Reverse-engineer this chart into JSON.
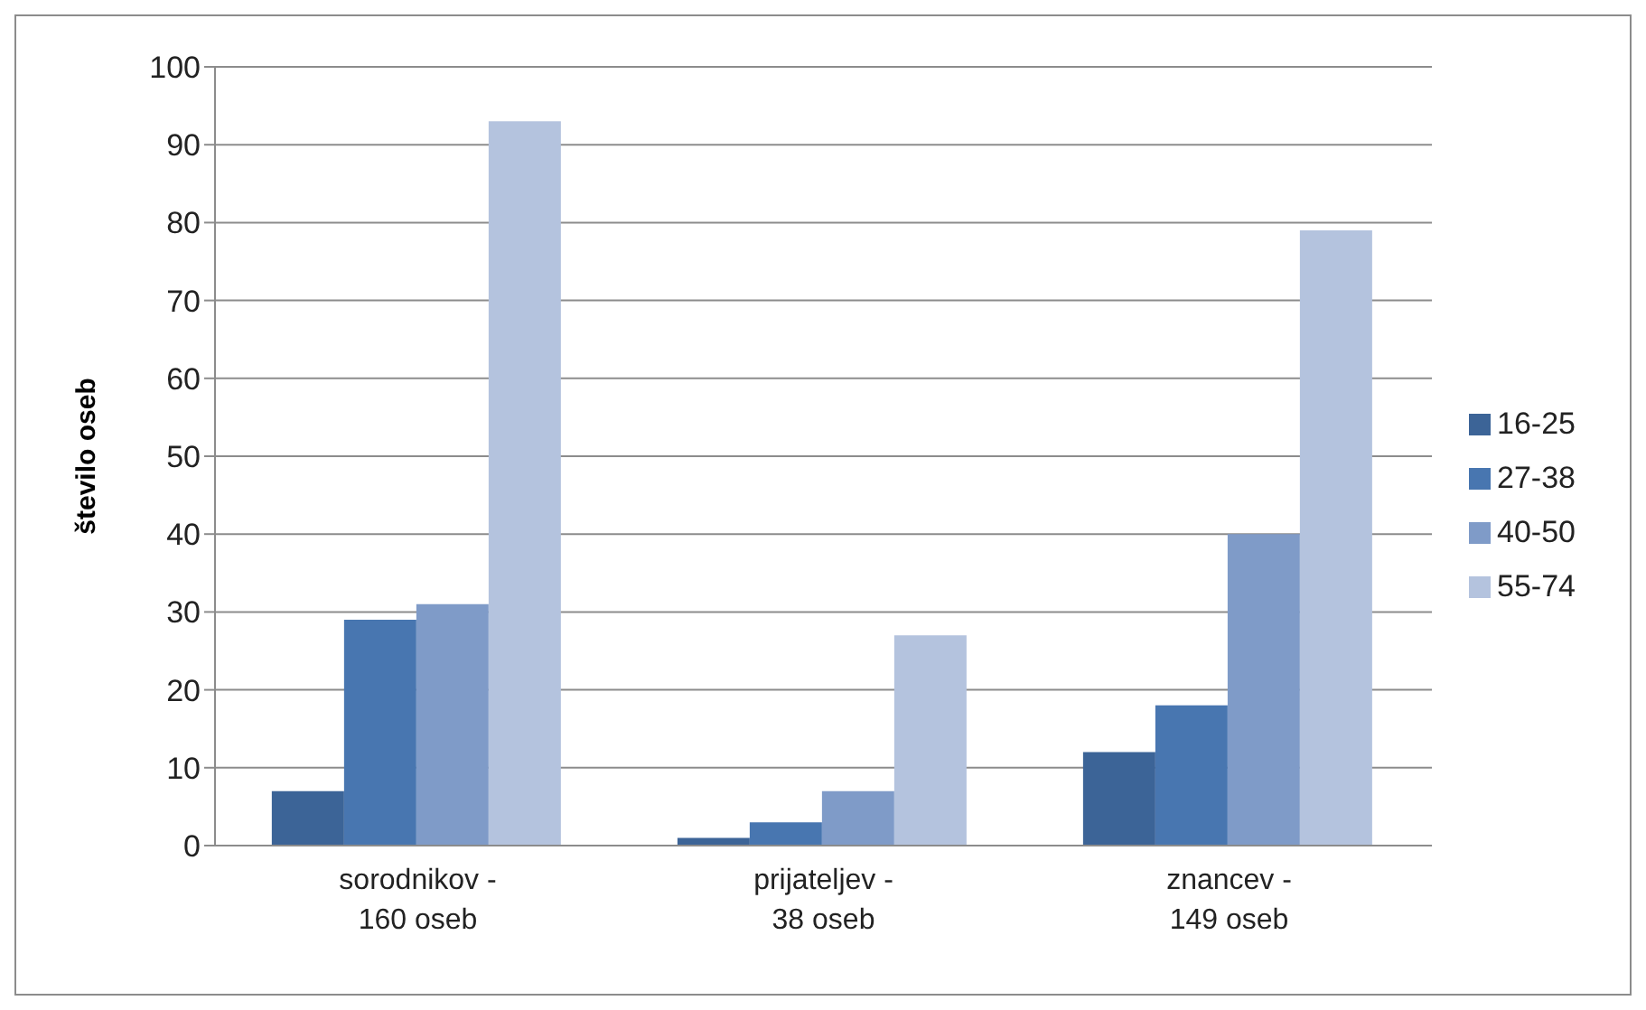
{
  "chart_data": {
    "type": "bar",
    "ylabel": "število oseb",
    "categories": [
      "sorodnikov  -\n160 oseb",
      "prijateljev -\n38 oseb",
      "znancev -\n149 oseb"
    ],
    "series": [
      {
        "name": "16-25",
        "color": "#3c6497",
        "values": [
          7,
          1,
          12
        ]
      },
      {
        "name": "27-38",
        "color": "#4876b0",
        "values": [
          29,
          3,
          18
        ]
      },
      {
        "name": "40-50",
        "color": "#7f9bc8",
        "values": [
          31,
          7,
          40
        ]
      },
      {
        "name": "55-74",
        "color": "#b4c3de",
        "values": [
          93,
          27,
          79
        ]
      }
    ],
    "ylim": [
      0,
      100
    ],
    "yticks": [
      0,
      10,
      20,
      30,
      40,
      50,
      60,
      70,
      80,
      90,
      100
    ],
    "grid": "y",
    "legend": "right"
  }
}
